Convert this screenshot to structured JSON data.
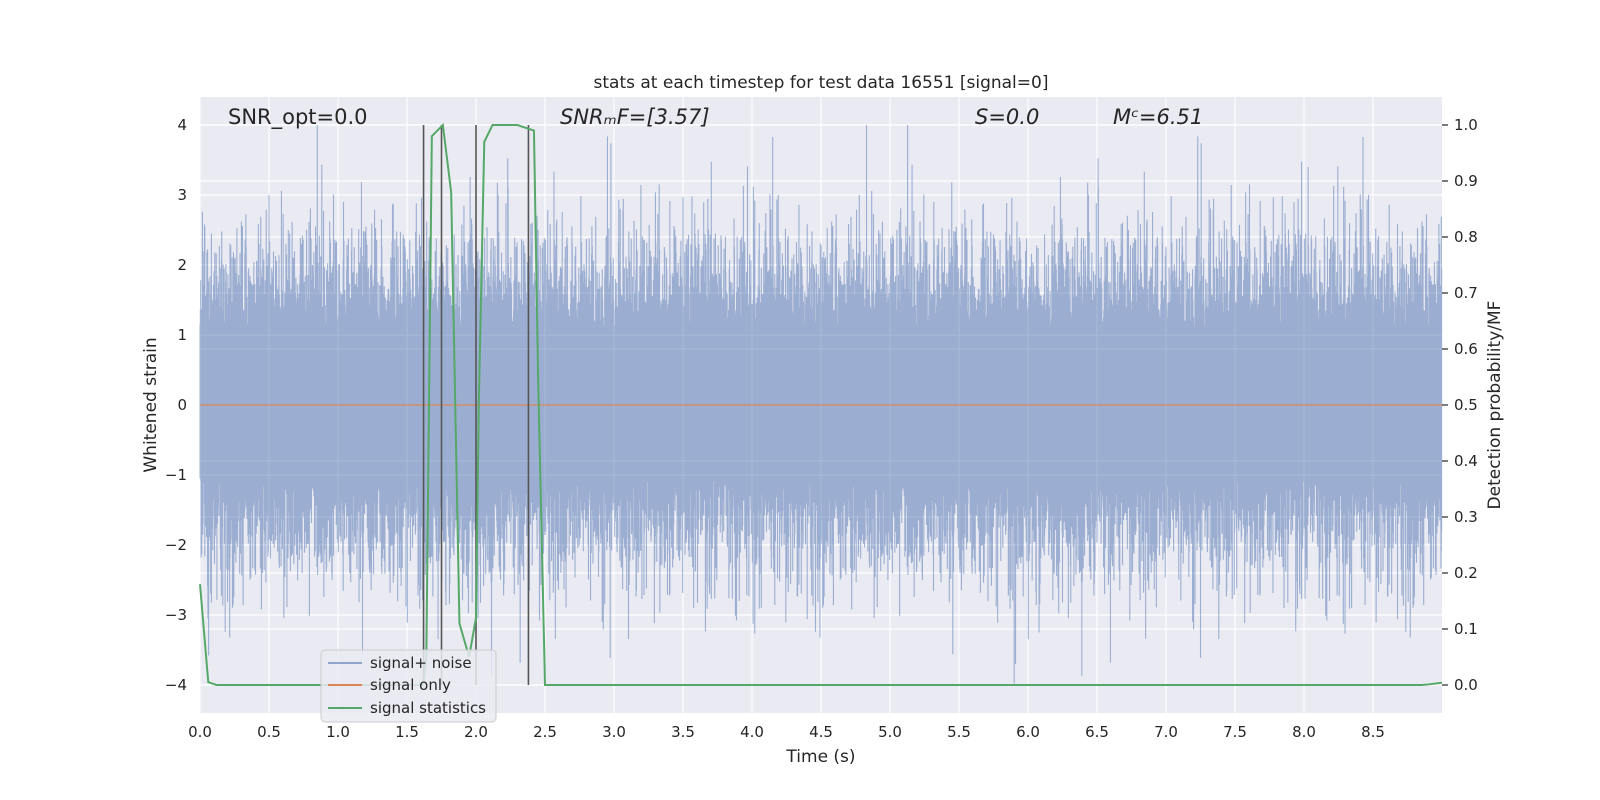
{
  "chart_data": {
    "type": "line",
    "title": "stats at each timestep for test data 16551 [signal=0]",
    "xlabel": "Time (s)",
    "ylabel_left": "Whitened strain",
    "ylabel_right": "Detection probability/MF",
    "xlim": [
      0,
      9
    ],
    "ylim_left": [
      -4.4,
      4.4
    ],
    "ylim_right": [
      -0.05,
      1.05
    ],
    "x_ticks": [
      0.0,
      0.5,
      1.0,
      1.5,
      2.0,
      2.5,
      3.0,
      3.5,
      4.0,
      4.5,
      5.0,
      5.5,
      6.0,
      6.5,
      7.0,
      7.5,
      8.0,
      8.5
    ],
    "x_tick_labels": [
      "0.0",
      "0.5",
      "1.0",
      "1.5",
      "2.0",
      "2.5",
      "3.0",
      "3.5",
      "4.0",
      "4.5",
      "5.0",
      "5.5",
      "6.0",
      "6.5",
      "7.0",
      "7.5",
      "8.0",
      "8.5"
    ],
    "y_left_ticks": [
      -4,
      -3,
      -2,
      -1,
      0,
      1,
      2,
      3,
      4
    ],
    "y_left_tick_labels": [
      "−4",
      "−3",
      "−2",
      "−1",
      "0",
      "1",
      "2",
      "3",
      "4"
    ],
    "y_right_ticks": [
      0.0,
      0.1,
      0.2,
      0.3,
      0.4,
      0.5,
      0.6,
      0.7,
      0.8,
      0.9,
      1.0
    ],
    "y_right_tick_labels": [
      "0.0",
      "0.1",
      "0.2",
      "0.3",
      "0.4",
      "0.5",
      "0.6",
      "0.7",
      "0.8",
      "0.9",
      "1.0"
    ],
    "grid": true,
    "legend_placement": "lower-left",
    "series": [
      {
        "name": "signal+ noise",
        "axis": "left",
        "color": "#4c72b0",
        "style": "dense noise, roughly ±1.5 envelope with spikes up to 4.0 and down to -4.0"
      },
      {
        "name": "signal only",
        "axis": "left",
        "color": "#dd8452",
        "x": [
          0,
          9
        ],
        "y": [
          0,
          0
        ]
      },
      {
        "name": "signal statistics",
        "axis": "right",
        "color": "#55a868",
        "x": [
          0.0,
          0.06,
          0.12,
          0.18,
          1.62,
          1.64,
          1.68,
          1.72,
          1.76,
          1.82,
          1.88,
          1.95,
          2.0,
          2.02,
          2.06,
          2.12,
          2.2,
          2.3,
          2.36,
          2.42,
          2.45,
          2.5,
          8.85,
          8.9,
          9.0
        ],
        "y": [
          0.18,
          0.005,
          0.0,
          0.0,
          0.0,
          0.05,
          0.98,
          0.99,
          1.0,
          0.88,
          0.11,
          0.05,
          0.12,
          0.5,
          0.97,
          1.0,
          1.0,
          1.0,
          0.995,
          0.99,
          0.55,
          0.0,
          0.0,
          0.001,
          0.004
        ]
      }
    ],
    "vertical_lines_x": [
      1.62,
      1.75,
      2.0,
      2.38
    ],
    "vertical_lines_color": "#555555",
    "annotations": [
      {
        "id": "snr-opt",
        "text": "SNR_opt=0.0"
      },
      {
        "id": "snr-mf",
        "text": "SNRₘF=[3.57]"
      },
      {
        "id": "s-val",
        "text": "S=0.0"
      },
      {
        "id": "mc-val",
        "text": "Mᶜ=6.51"
      }
    ],
    "colors": {
      "plot_background": "#eaeaf2",
      "grid": "#ffffff",
      "noise_fill": "#9aabcf"
    }
  }
}
